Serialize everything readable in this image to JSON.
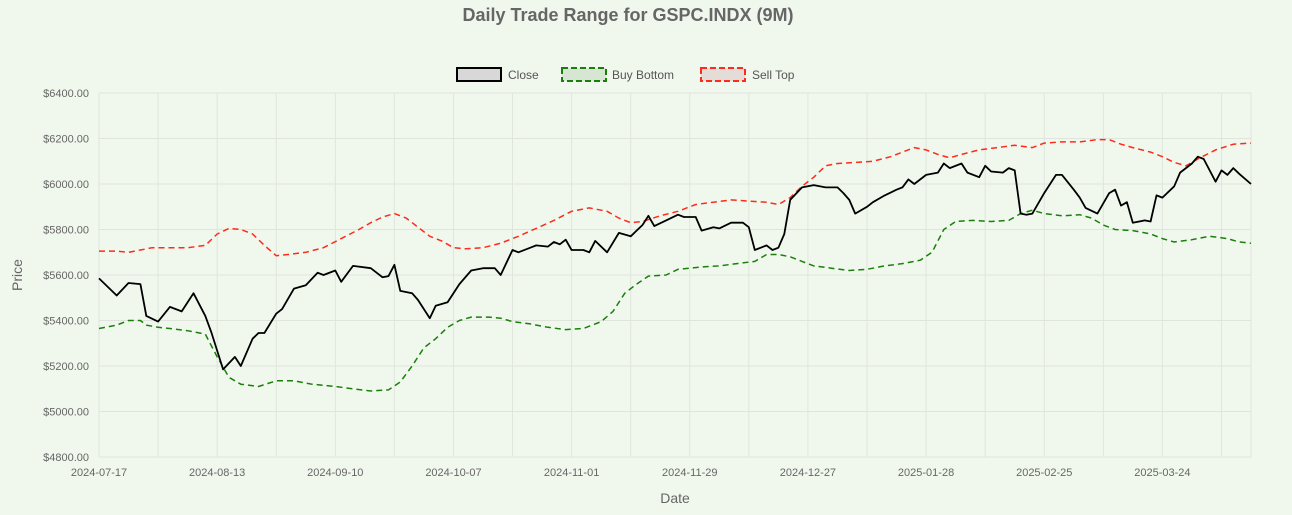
{
  "chart_data": {
    "type": "line",
    "title": "Daily Trade Range for GSPC.INDX (9M)",
    "xlabel": "Date",
    "ylabel": "Price",
    "ylim": [
      4800,
      6400
    ],
    "y_ticks": [
      4800,
      5000,
      5200,
      5400,
      5600,
      5800,
      6000,
      6200,
      6400
    ],
    "y_tick_labels": [
      "$4800.00",
      "$5000.00",
      "$5200.00",
      "$5400.00",
      "$5600.00",
      "$5800.00",
      "$6000.00",
      "$6200.00",
      "$6400.00"
    ],
    "x_tick_labels": [
      "2024-07-17",
      "2024-08-13",
      "2024-09-10",
      "2024-10-07",
      "2024-11-01",
      "2024-11-29",
      "2024-12-27",
      "2025-01-28",
      "2025-02-25",
      "2025-03-24"
    ],
    "x_tick_step": 20,
    "n_points": 196,
    "legend_position": "top-center",
    "series": [
      {
        "name": "Close",
        "color": "#000000",
        "dash": "solid",
        "keypoints": [
          [
            0,
            5585
          ],
          [
            3,
            5510
          ],
          [
            5,
            5565
          ],
          [
            7,
            5560
          ],
          [
            8,
            5420
          ],
          [
            10,
            5395
          ],
          [
            12,
            5460
          ],
          [
            14,
            5440
          ],
          [
            16,
            5520
          ],
          [
            18,
            5420
          ],
          [
            19,
            5350
          ],
          [
            21,
            5185
          ],
          [
            23,
            5240
          ],
          [
            24,
            5200
          ],
          [
            26,
            5320
          ],
          [
            27,
            5345
          ],
          [
            28,
            5345
          ],
          [
            30,
            5430
          ],
          [
            31,
            5450
          ],
          [
            33,
            5540
          ],
          [
            35,
            5555
          ],
          [
            37,
            5610
          ],
          [
            38,
            5600
          ],
          [
            40,
            5620
          ],
          [
            41,
            5570
          ],
          [
            43,
            5640
          ],
          [
            46,
            5630
          ],
          [
            48,
            5590
          ],
          [
            49,
            5595
          ],
          [
            50,
            5645
          ],
          [
            51,
            5530
          ],
          [
            53,
            5520
          ],
          [
            54,
            5490
          ],
          [
            56,
            5410
          ],
          [
            57,
            5465
          ],
          [
            59,
            5480
          ],
          [
            61,
            5560
          ],
          [
            63,
            5620
          ],
          [
            65,
            5630
          ],
          [
            67,
            5630
          ],
          [
            68,
            5600
          ],
          [
            70,
            5710
          ],
          [
            71,
            5700
          ],
          [
            73,
            5720
          ],
          [
            74,
            5730
          ],
          [
            76,
            5725
          ],
          [
            77,
            5745
          ],
          [
            78,
            5735
          ],
          [
            79,
            5755
          ],
          [
            80,
            5710
          ],
          [
            82,
            5710
          ],
          [
            83,
            5700
          ],
          [
            84,
            5750
          ],
          [
            86,
            5700
          ],
          [
            88,
            5785
          ],
          [
            90,
            5770
          ],
          [
            92,
            5820
          ],
          [
            93,
            5860
          ],
          [
            94,
            5815
          ],
          [
            96,
            5840
          ],
          [
            98,
            5865
          ],
          [
            99,
            5855
          ],
          [
            101,
            5855
          ],
          [
            102,
            5795
          ],
          [
            104,
            5810
          ],
          [
            105,
            5805
          ],
          [
            107,
            5830
          ],
          [
            109,
            5830
          ],
          [
            110,
            5810
          ],
          [
            111,
            5710
          ],
          [
            113,
            5730
          ],
          [
            114,
            5710
          ],
          [
            115,
            5720
          ],
          [
            116,
            5780
          ],
          [
            117,
            5930
          ],
          [
            119,
            5985
          ],
          [
            121,
            5995
          ],
          [
            123,
            5985
          ],
          [
            125,
            5985
          ],
          [
            126,
            5960
          ],
          [
            127,
            5930
          ],
          [
            128,
            5870
          ],
          [
            130,
            5900
          ],
          [
            131,
            5920
          ],
          [
            133,
            5950
          ],
          [
            135,
            5975
          ],
          [
            136,
            5985
          ],
          [
            137,
            6020
          ],
          [
            138,
            6000
          ],
          [
            140,
            6040
          ],
          [
            142,
            6050
          ],
          [
            143,
            6090
          ],
          [
            144,
            6070
          ],
          [
            146,
            6090
          ],
          [
            147,
            6050
          ],
          [
            149,
            6030
          ],
          [
            150,
            6080
          ],
          [
            151,
            6055
          ],
          [
            153,
            6050
          ],
          [
            154,
            6070
          ],
          [
            155,
            6060
          ],
          [
            156,
            5870
          ],
          [
            157,
            5865
          ],
          [
            158,
            5870
          ],
          [
            160,
            5960
          ],
          [
            162,
            6040
          ],
          [
            163,
            6040
          ],
          [
            165,
            5975
          ],
          [
            166,
            5940
          ],
          [
            167,
            5895
          ],
          [
            169,
            5870
          ],
          [
            171,
            5960
          ],
          [
            172,
            5975
          ],
          [
            173,
            5905
          ],
          [
            174,
            5920
          ],
          [
            175,
            5830
          ],
          [
            177,
            5840
          ],
          [
            178,
            5835
          ],
          [
            179,
            5950
          ],
          [
            180,
            5940
          ],
          [
            182,
            5990
          ],
          [
            183,
            6050
          ],
          [
            185,
            6090
          ],
          [
            186,
            6120
          ],
          [
            187,
            6110
          ],
          [
            189,
            6010
          ],
          [
            190,
            6060
          ],
          [
            191,
            6040
          ],
          [
            192,
            6070
          ],
          [
            193,
            6045
          ],
          [
            195,
            6000
          ]
        ]
      },
      {
        "name": "Buy Bottom",
        "color": "#1a7f0a",
        "dash": "dashed",
        "keypoints": [
          [
            0,
            5365
          ],
          [
            3,
            5380
          ],
          [
            5,
            5400
          ],
          [
            7,
            5400
          ],
          [
            8,
            5380
          ],
          [
            10,
            5370
          ],
          [
            12,
            5365
          ],
          [
            15,
            5355
          ],
          [
            18,
            5340
          ],
          [
            20,
            5240
          ],
          [
            22,
            5150
          ],
          [
            24,
            5120
          ],
          [
            27,
            5110
          ],
          [
            30,
            5135
          ],
          [
            33,
            5135
          ],
          [
            36,
            5120
          ],
          [
            40,
            5110
          ],
          [
            43,
            5100
          ],
          [
            46,
            5090
          ],
          [
            49,
            5095
          ],
          [
            51,
            5130
          ],
          [
            53,
            5200
          ],
          [
            55,
            5280
          ],
          [
            57,
            5320
          ],
          [
            59,
            5370
          ],
          [
            61,
            5400
          ],
          [
            63,
            5415
          ],
          [
            66,
            5415
          ],
          [
            68,
            5410
          ],
          [
            70,
            5395
          ],
          [
            73,
            5385
          ],
          [
            76,
            5370
          ],
          [
            79,
            5360
          ],
          [
            82,
            5365
          ],
          [
            85,
            5395
          ],
          [
            87,
            5440
          ],
          [
            89,
            5520
          ],
          [
            91,
            5560
          ],
          [
            93,
            5595
          ],
          [
            96,
            5600
          ],
          [
            98,
            5625
          ],
          [
            100,
            5630
          ],
          [
            102,
            5635
          ],
          [
            105,
            5640
          ],
          [
            108,
            5650
          ],
          [
            111,
            5660
          ],
          [
            113,
            5690
          ],
          [
            115,
            5690
          ],
          [
            117,
            5680
          ],
          [
            119,
            5660
          ],
          [
            121,
            5640
          ],
          [
            124,
            5630
          ],
          [
            127,
            5620
          ],
          [
            130,
            5625
          ],
          [
            133,
            5640
          ],
          [
            136,
            5650
          ],
          [
            139,
            5665
          ],
          [
            141,
            5700
          ],
          [
            143,
            5800
          ],
          [
            145,
            5835
          ],
          [
            148,
            5840
          ],
          [
            151,
            5835
          ],
          [
            154,
            5840
          ],
          [
            156,
            5870
          ],
          [
            158,
            5885
          ],
          [
            160,
            5870
          ],
          [
            163,
            5860
          ],
          [
            166,
            5865
          ],
          [
            168,
            5850
          ],
          [
            170,
            5820
          ],
          [
            172,
            5800
          ],
          [
            175,
            5795
          ],
          [
            178,
            5780
          ],
          [
            180,
            5760
          ],
          [
            182,
            5745
          ],
          [
            185,
            5755
          ],
          [
            188,
            5770
          ],
          [
            191,
            5760
          ],
          [
            193,
            5745
          ],
          [
            195,
            5740
          ]
        ]
      },
      {
        "name": "Sell Top",
        "color": "#ff2a1a",
        "dash": "dashed",
        "keypoints": [
          [
            0,
            5705
          ],
          [
            3,
            5705
          ],
          [
            5,
            5700
          ],
          [
            7,
            5710
          ],
          [
            9,
            5720
          ],
          [
            12,
            5720
          ],
          [
            15,
            5720
          ],
          [
            18,
            5730
          ],
          [
            20,
            5780
          ],
          [
            22,
            5805
          ],
          [
            24,
            5800
          ],
          [
            26,
            5780
          ],
          [
            28,
            5730
          ],
          [
            30,
            5685
          ],
          [
            32,
            5690
          ],
          [
            35,
            5700
          ],
          [
            38,
            5720
          ],
          [
            41,
            5760
          ],
          [
            44,
            5800
          ],
          [
            46,
            5830
          ],
          [
            48,
            5855
          ],
          [
            50,
            5870
          ],
          [
            52,
            5850
          ],
          [
            54,
            5810
          ],
          [
            56,
            5770
          ],
          [
            58,
            5750
          ],
          [
            60,
            5720
          ],
          [
            62,
            5715
          ],
          [
            65,
            5720
          ],
          [
            68,
            5740
          ],
          [
            71,
            5770
          ],
          [
            74,
            5805
          ],
          [
            77,
            5840
          ],
          [
            80,
            5880
          ],
          [
            83,
            5895
          ],
          [
            86,
            5880
          ],
          [
            88,
            5850
          ],
          [
            90,
            5830
          ],
          [
            92,
            5835
          ],
          [
            95,
            5860
          ],
          [
            98,
            5880
          ],
          [
            101,
            5910
          ],
          [
            104,
            5920
          ],
          [
            107,
            5930
          ],
          [
            110,
            5925
          ],
          [
            113,
            5920
          ],
          [
            115,
            5910
          ],
          [
            117,
            5940
          ],
          [
            119,
            5990
          ],
          [
            121,
            6030
          ],
          [
            123,
            6080
          ],
          [
            125,
            6090
          ],
          [
            128,
            6095
          ],
          [
            131,
            6100
          ],
          [
            134,
            6120
          ],
          [
            136,
            6140
          ],
          [
            138,
            6160
          ],
          [
            140,
            6150
          ],
          [
            142,
            6130
          ],
          [
            144,
            6115
          ],
          [
            146,
            6130
          ],
          [
            149,
            6150
          ],
          [
            152,
            6160
          ],
          [
            155,
            6170
          ],
          [
            158,
            6160
          ],
          [
            160,
            6180
          ],
          [
            163,
            6185
          ],
          [
            166,
            6185
          ],
          [
            169,
            6195
          ],
          [
            171,
            6195
          ],
          [
            173,
            6175
          ],
          [
            175,
            6160
          ],
          [
            178,
            6140
          ],
          [
            180,
            6120
          ],
          [
            182,
            6095
          ],
          [
            184,
            6080
          ],
          [
            186,
            6110
          ],
          [
            189,
            6150
          ],
          [
            192,
            6175
          ],
          [
            195,
            6180
          ]
        ]
      }
    ]
  }
}
